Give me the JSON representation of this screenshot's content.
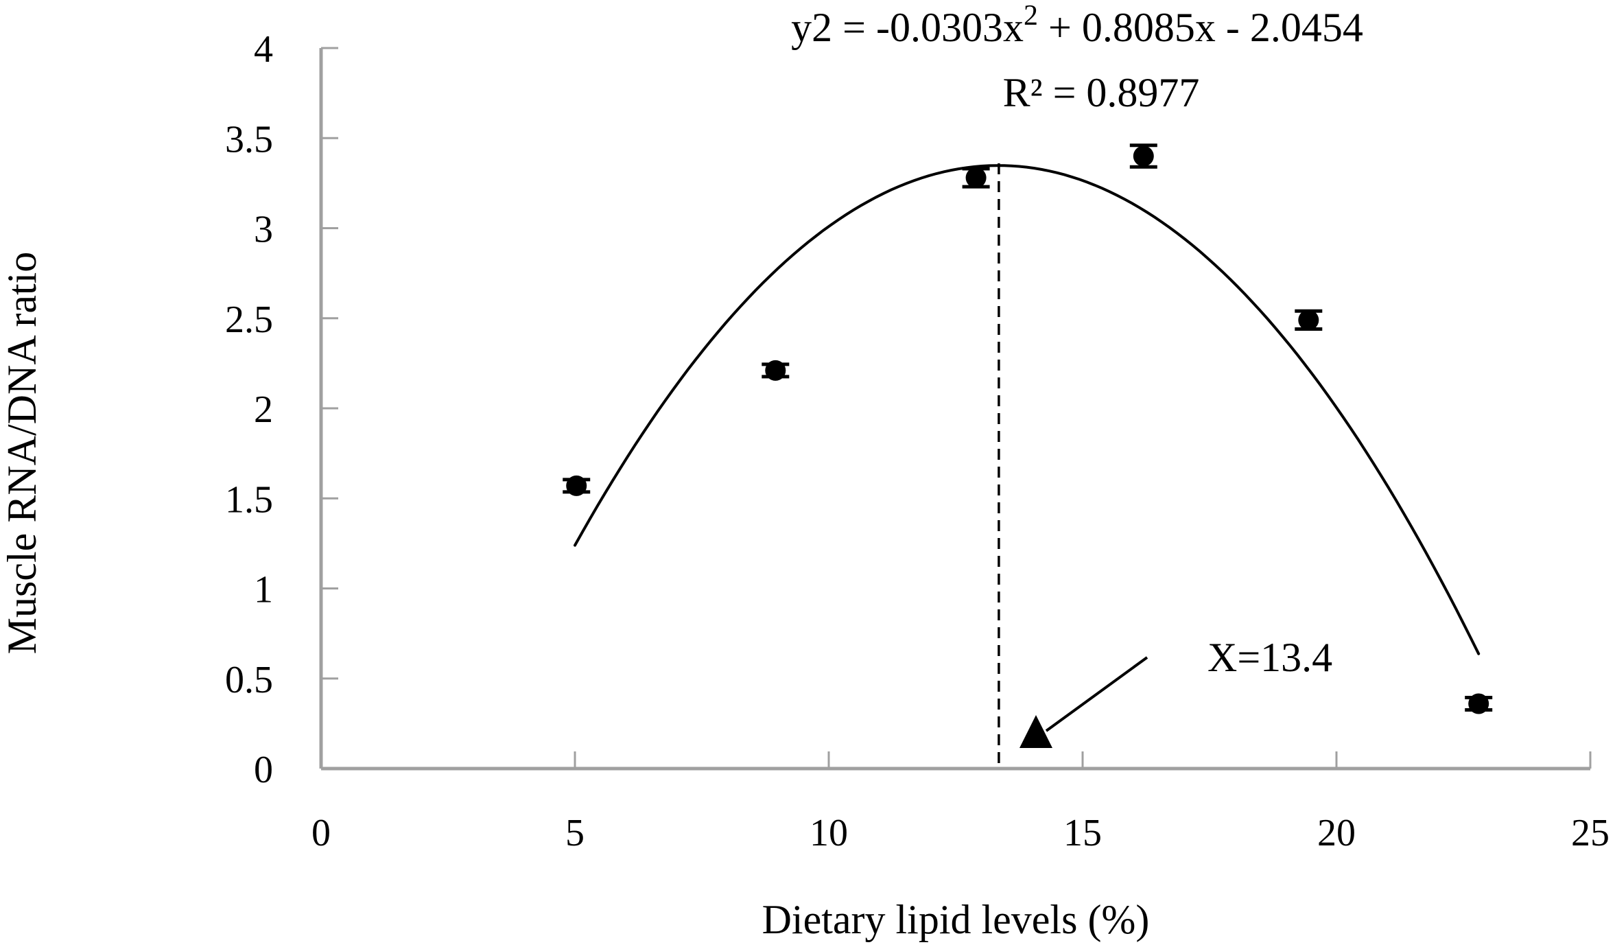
{
  "chart_data": {
    "type": "scatter",
    "title": "",
    "xlabel": "Dietary lipid levels (%)",
    "ylabel": "Muscle RNA/DNA ratio",
    "xlim": [
      0,
      25
    ],
    "ylim": [
      0,
      4
    ],
    "x_ticks": [
      0,
      5,
      10,
      15,
      20,
      25
    ],
    "x_tick_labels": [
      "0",
      "5",
      "10",
      "15",
      "20",
      "25"
    ],
    "y_ticks": [
      0,
      0.5,
      1,
      1.5,
      2,
      2.5,
      3,
      3.5,
      4
    ],
    "y_tick_labels": [
      "0",
      "0.5",
      "1",
      "1.5",
      "2",
      "2.5",
      "3",
      "3.5",
      "4"
    ],
    "grid": false,
    "legend": null,
    "series": [
      {
        "name": "Muscle RNA/DNA ratio",
        "x": [
          5.03,
          8.95,
          12.9,
          16.2,
          19.45,
          22.8
        ],
        "y": [
          1.57,
          2.21,
          3.28,
          3.4,
          2.49,
          0.36
        ],
        "error": [
          0.03,
          0.03,
          0.05,
          0.06,
          0.05,
          0.03
        ],
        "marker": "circle",
        "color": "#000000"
      }
    ],
    "trendline": {
      "type": "polynomial",
      "order": 2,
      "coefficients": {
        "a": -0.0303,
        "b": 0.8085,
        "c": -2.0454
      },
      "x_range": [
        5.0,
        22.8
      ],
      "equation_label": "y2 = -0.0303x² + 0.8085x - 2.0454",
      "r2_label": "R² = 0.8977"
    },
    "annotations": [
      {
        "type": "vertical-dashed-line",
        "x": 13.35
      },
      {
        "type": "triangle-marker",
        "x": 14.0,
        "y": 0.2
      },
      {
        "type": "arrow-label",
        "text": "X=13.4"
      }
    ]
  },
  "equation": {
    "prefix": "y2 = -0.0303x",
    "sup": "2",
    "suffix": " + 0.8085x - 2.0454"
  },
  "r_squared": "R² = 0.8977",
  "annotation_label": "X=13.4",
  "axis_color": "#a0a0a0",
  "ink_color": "#000000"
}
